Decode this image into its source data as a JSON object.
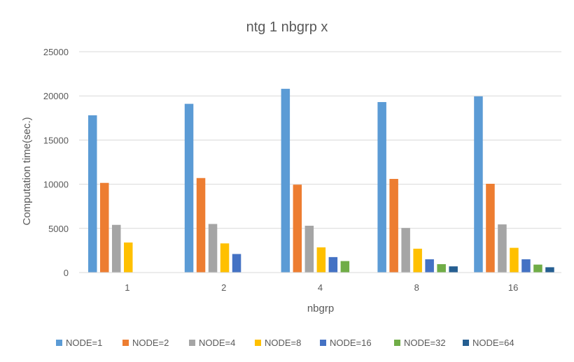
{
  "chart_data": {
    "type": "bar",
    "title": "ntg 1 nbgrp x",
    "xlabel": "nbgrp",
    "ylabel": "Computation time(sec.)",
    "ylim": [
      0,
      25000
    ],
    "yticks": [
      "0",
      "5000",
      "10000",
      "15000",
      "20000",
      "25000"
    ],
    "grid": true,
    "legend_position": "bottom",
    "categories": [
      "1",
      "2",
      "4",
      "8",
      "16"
    ],
    "series": [
      {
        "name": "NODE=1",
        "color": "#5B9BD5",
        "values": [
          17800,
          19100,
          20800,
          19300,
          19950
        ]
      },
      {
        "name": "NODE=2",
        "color": "#ED7D31",
        "values": [
          10150,
          10700,
          9950,
          10600,
          10050
        ]
      },
      {
        "name": "NODE=4",
        "color": "#A5A5A5",
        "values": [
          5400,
          5500,
          5300,
          5050,
          5450
        ]
      },
      {
        "name": "NODE=8",
        "color": "#FFC000",
        "values": [
          3400,
          3300,
          2850,
          2700,
          2800
        ]
      },
      {
        "name": "NODE=16",
        "color": "#4472C4",
        "values": [
          null,
          2100,
          1750,
          1500,
          1500
        ]
      },
      {
        "name": "NODE=32",
        "color": "#70AD47",
        "values": [
          null,
          null,
          1300,
          950,
          900
        ]
      },
      {
        "name": "NODE=64",
        "color": "#255E91",
        "values": [
          null,
          null,
          null,
          700,
          600
        ]
      }
    ]
  }
}
